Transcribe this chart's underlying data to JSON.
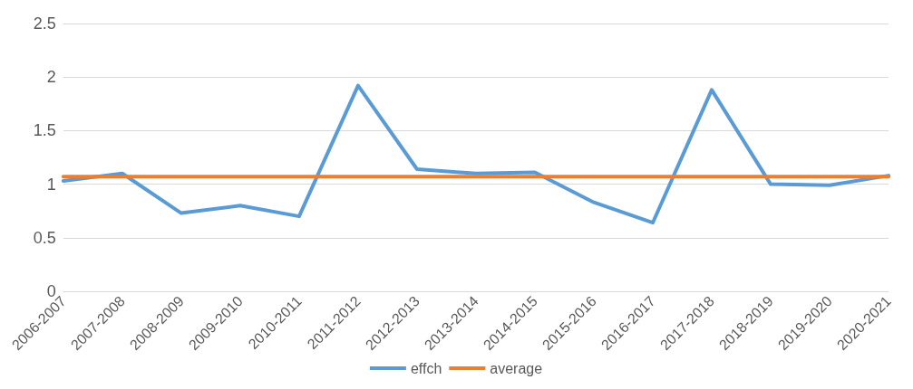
{
  "chart_data": {
    "type": "line",
    "categories": [
      "2006-2007",
      "2007-2008",
      "2008-2009",
      "2009-2010",
      "2010-2011",
      "2011-2012",
      "2012-2013",
      "2013-2014",
      "2014-2015",
      "2015-2016",
      "2016-2017",
      "2017-2018",
      "2018-2019",
      "2019-2020",
      "2020-2021"
    ],
    "series": [
      {
        "name": "effch",
        "color": "#5b9bd5",
        "values": [
          1.03,
          1.1,
          0.73,
          0.8,
          0.7,
          1.92,
          1.14,
          1.1,
          1.11,
          0.83,
          0.64,
          1.88,
          1.0,
          0.99,
          1.08
        ]
      },
      {
        "name": "average",
        "color": "#ed7d31",
        "values": [
          1.07,
          1.07,
          1.07,
          1.07,
          1.07,
          1.07,
          1.07,
          1.07,
          1.07,
          1.07,
          1.07,
          1.07,
          1.07,
          1.07,
          1.07
        ]
      }
    ],
    "ylim": [
      0,
      2.5
    ],
    "yticks": [
      0,
      0.5,
      1,
      1.5,
      2,
      2.5
    ],
    "grid": "y",
    "legend": "bottom",
    "marker": "none",
    "line_style": "solid"
  }
}
